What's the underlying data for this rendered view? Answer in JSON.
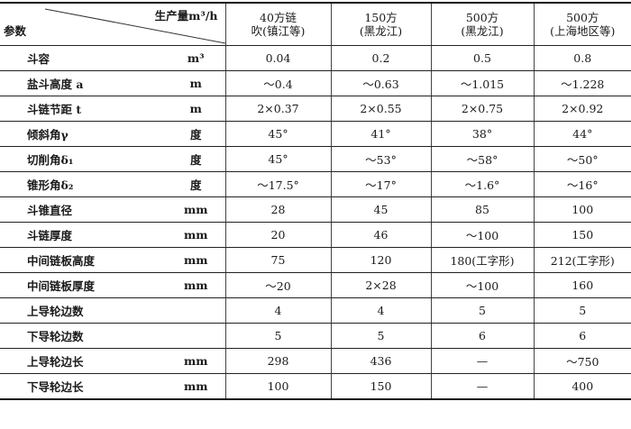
{
  "header": {
    "param_label": "参数",
    "output_label": "生产量m³/h",
    "columns": [
      {
        "line1": "40方链",
        "line2": "吹(镇江等)"
      },
      {
        "line1": "150方",
        "line2": "(黑龙江)"
      },
      {
        "line1": "500方",
        "line2": "(黑龙江)"
      },
      {
        "line1": "500方",
        "line2": "(上海地区等)"
      }
    ]
  },
  "rows": [
    {
      "param": "斗容",
      "unit": "m³",
      "values": [
        "0.04",
        "0.2",
        "0.5",
        "0.8"
      ]
    },
    {
      "param": "盐斗高度 a",
      "unit": "m",
      "values": [
        "～0.4",
        "～0.63",
        "～1.015",
        "～1.228"
      ]
    },
    {
      "param": "斗链节距 t",
      "unit": "m",
      "values": [
        "2×0.37",
        "2×0.55",
        "2×0.75",
        "2×0.92"
      ]
    },
    {
      "param": "倾斜角γ",
      "unit": "度",
      "values": [
        "45°",
        "41°",
        "38°",
        "44°"
      ]
    },
    {
      "param": "切削角δ₁",
      "unit": "度",
      "values": [
        "45°",
        "～53°",
        "～58°",
        "～50°"
      ]
    },
    {
      "param": "锥形角δ₂",
      "unit": "度",
      "values": [
        "～17.5°",
        "～17°",
        "～1.6°",
        "～16°"
      ]
    },
    {
      "param": "斗锥直径",
      "unit": "mm",
      "values": [
        "28",
        "45",
        "85",
        "100"
      ]
    },
    {
      "param": "斗链厚度",
      "unit": "mm",
      "values": [
        "20",
        "46",
        "～100",
        "150"
      ]
    },
    {
      "param": "中间链板高度",
      "unit": "mm",
      "values": [
        "75",
        "120",
        "180(工字形)",
        "212(工字形)"
      ]
    },
    {
      "param": "中间链板厚度",
      "unit": "mm",
      "values": [
        "～20",
        "2×28",
        "～100",
        "160"
      ]
    },
    {
      "param": "上导轮边数",
      "unit": "",
      "values": [
        "4",
        "4",
        "5",
        "5"
      ]
    },
    {
      "param": "下导轮边数",
      "unit": "",
      "values": [
        "5",
        "5",
        "6",
        "6"
      ]
    },
    {
      "param": "上导轮边长",
      "unit": "mm",
      "values": [
        "298",
        "436",
        "—",
        "～750"
      ]
    },
    {
      "param": "下导轮边长",
      "unit": "mm",
      "values": [
        "100",
        "150",
        "—",
        "400"
      ]
    }
  ]
}
